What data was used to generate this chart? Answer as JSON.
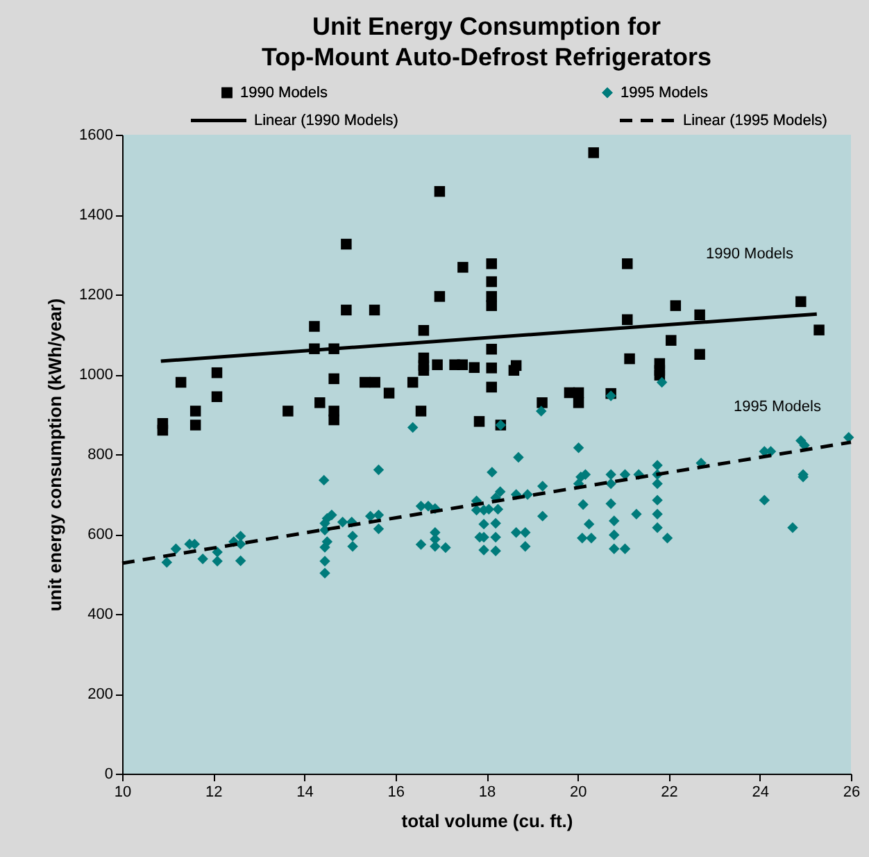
{
  "chart_data": {
    "type": "scatter",
    "title": [
      "Unit Energy Consumption for",
      "Top-Mount Auto-Defrost Refrigerators"
    ],
    "xlabel": "total volume (cu. ft.)",
    "ylabel": "unit energy consumption (kWh/year)",
    "xlim": [
      10,
      26
    ],
    "xticks": [
      10,
      12,
      14,
      16,
      18,
      20,
      22,
      24,
      26
    ],
    "ylim": [
      0,
      1600
    ],
    "yticks": [
      0,
      200,
      400,
      600,
      800,
      1000,
      1200,
      1400,
      1600
    ],
    "legend": "top",
    "grid": false,
    "annotations": [
      "1990 Models",
      "1995 Models"
    ],
    "series": [
      {
        "name": "1990 Models",
        "marker": "square",
        "color": "#000000",
        "x": [
          10.89,
          10.89,
          11.29,
          11.61,
          11.61,
          12.08,
          12.08,
          13.64,
          14.22,
          14.22,
          14.34,
          14.65,
          14.65,
          14.65,
          14.65,
          14.92,
          14.92,
          15.54,
          15.33,
          15.55,
          15.86,
          16.38,
          16.56,
          16.62,
          16.62,
          16.62,
          16.62,
          16.97,
          16.97,
          16.92,
          17.3,
          17.47,
          17.48,
          17.84,
          17.73,
          18.11,
          18.11,
          18.11,
          18.11,
          18.11,
          18.11,
          18.11,
          18.31,
          18.65,
          18.6,
          19.22,
          19.82,
          20.02,
          20.02,
          20.35,
          20.73,
          21.09,
          21.09,
          21.14,
          21.8,
          21.8,
          21.8,
          22.05,
          22.15,
          22.68,
          22.68,
          24.9,
          25.3
        ],
        "values": [
          877,
          860,
          980,
          908,
          873,
          1004,
          944,
          908,
          1120,
          1064,
          929,
          1064,
          989,
          908,
          886,
          1326,
          1161,
          1161,
          980,
          980,
          953,
          980,
          908,
          1110,
          1041,
          1022,
          1010,
          1458,
          1195,
          1024,
          1024,
          1024,
          1268,
          882,
          1017,
          1277,
          1232,
          1195,
          1172,
          1063,
          1016,
          968,
          873,
          1022,
          1010,
          929,
          954,
          954,
          929,
          1555,
          952,
          1277,
          1137,
          1039,
          1027,
          1010,
          998,
          1085,
          1172,
          1149,
          1050,
          1182,
          1111
        ]
      },
      {
        "name": "1995 Models",
        "marker": "diamond",
        "color": "#007b7b",
        "x": [
          10.98,
          11.18,
          11.48,
          11.59,
          11.77,
          12.09,
          12.09,
          12.45,
          12.6,
          12.6,
          12.6,
          14.43,
          14.45,
          14.5,
          14.6,
          14.45,
          14.5,
          14.45,
          14.45,
          14.45,
          14.84,
          15.04,
          15.06,
          15.06,
          15.63,
          15.45,
          15.63,
          15.63,
          16.56,
          16.72,
          16.87,
          16.56,
          16.87,
          16.87,
          16.87,
          17.1,
          16.38,
          17.78,
          17.78,
          17.94,
          17.94,
          17.94,
          17.94,
          17.85,
          18.12,
          18.05,
          18.25,
          18.2,
          18.3,
          18.2,
          18.2,
          18.2,
          18.65,
          18.9,
          18.7,
          18.65,
          18.85,
          18.85,
          19.23,
          19.23,
          19.2,
          18.31,
          20.02,
          20.07,
          20.17,
          20.02,
          20.12,
          20.25,
          20.1,
          20.3,
          20.73,
          20.73,
          21.04,
          21.34,
          20.73,
          20.73,
          20.8,
          20.8,
          20.8,
          21.04,
          21.29,
          21.75,
          21.75,
          21.75,
          21.75,
          21.75,
          21.75,
          21.97,
          21.85,
          22.71,
          24.1,
          24.24,
          24.1,
          24.72,
          24.9,
          24.98,
          24.95,
          24.95,
          25.95
        ],
        "values": [
          529,
          563,
          575,
          575,
          538,
          555,
          532,
          581,
          595,
          575,
          533,
          735,
          627,
          639,
          648,
          610,
          581,
          567,
          532,
          502,
          630,
          630,
          595,
          569,
          761,
          645,
          648,
          613,
          670,
          670,
          664,
          574,
          604,
          587,
          569,
          566,
          867,
          683,
          660,
          660,
          625,
          592,
          560,
          592,
          755,
          662,
          662,
          691,
          706,
          627,
          592,
          558,
          699,
          699,
          792,
          604,
          604,
          569,
          720,
          645,
          908,
          873,
          816,
          743,
          749,
          726,
          674,
          625,
          590,
          590,
          946,
          749,
          749,
          749,
          726,
          676,
          633,
          598,
          563,
          563,
          650,
          772,
          749,
          726,
          685,
          650,
          616,
          590,
          980,
          778,
          807,
          807,
          685,
          616,
          834,
          822,
          749,
          743,
          842
        ]
      },
      {
        "name": "Linear (1990 Models)",
        "type": "line",
        "line_style": "solid",
        "color": "#000000",
        "x": [
          10.85,
          25.25
        ],
        "values": [
          1033,
          1151
        ]
      },
      {
        "name": "Linear (1995 Models)",
        "type": "line",
        "line_style": "dashed",
        "color": "#000000",
        "x": [
          10,
          26
        ],
        "values": [
          527,
          830
        ]
      }
    ]
  }
}
